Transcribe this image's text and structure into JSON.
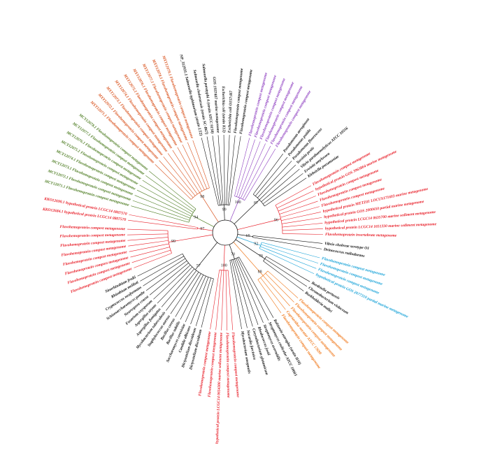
{
  "tree": {
    "clades": [
      {
        "color": "#111111",
        "support": 99,
        "leaves": [
          "NP_312931.1 Salmonella typhimurium (strain LT2)",
          "Salmonella choleraesuis (strain SC-B67)",
          "Salmonella paratyphi A (strain ATCC 9150)",
          "GOS 1937407 marine metagenome",
          "Escherichia coli (strain K12)",
          "Escherichia coli O157:H7",
          "Flavohemoprotein compost metagenome",
          "Flavohemoprotein compost metagenome"
        ]
      },
      {
        "color": "#8e3fc0",
        "support": 100,
        "leaves": [
          "Flavohemoprotein compost metagenome",
          "Flavohemoprotein compost metagenome",
          "Flavohemoprotein compost metagenome",
          "Flavohemoprotein compost metagenome",
          "Flavohemoprotein compost metagenome",
          "Flavohemoprotein compost metagenome"
        ]
      },
      {
        "color": "#111111",
        "support": 87,
        "leaves": [
          "Pseudomonas aeruginosa",
          "Pseudomonas putida",
          "Pseudomonas fluorescens",
          "Yersinia pestis",
          "Vibrio parahaemolyticus ATCC 10556",
          "Erwinia amylovora",
          "Klebsiella pneumoniae"
        ]
      },
      {
        "color": "#e8202a",
        "support": 96,
        "leaves": [
          "Flavohemoprotein compost metagenome",
          "hypothetical protein GOS 3963864 marine metagenome",
          "Flavohemoprotein compost metagenome",
          "Flavohemoprotein compost metagenome",
          "Flavohemoprotein compost metagenome",
          "hypothetical protein METZ01 LOCUS171603 marine metagenome",
          "hypothetical protein GOS 2000650 partial marine metagenome",
          "hypothetical protein LCGC14 0635700 marine sediment metagenome",
          "hypothetical protein LCGC14 1651330 marine sediment metagenome",
          "Flavohemoprotein invertebrate metagenome"
        ]
      },
      {
        "color": "#111111",
        "support": 65,
        "leaves": [
          "Vibrio cholerae serotype O1",
          "Deinococcus radiodurans"
        ]
      },
      {
        "color": "#1aa3d8",
        "support": 92,
        "leaves": [
          "Flavohemoprotein compost metagenome",
          "Flavohemoprotein compost metagenome",
          "Flavohemoprotein compost metagenome",
          "hypothetical protein GOS 2077310 partial marine metagenome"
        ]
      },
      {
        "color": "#111111",
        "support": 78,
        "leaves": [
          "Bordetella pertussis",
          "Chromobacterium violaceum",
          "Burkholderia mallei"
        ]
      },
      {
        "color": "#f07a1e",
        "support": 88,
        "leaves": [
          "Flavohemoprotein compost metagenome",
          "Flavohemoprotein compost metagenome",
          "Flavohemoprotein compost metagenome",
          "Cupriavidus necator ATCC 17699",
          "Flavohemoprotein compost metagenome"
        ]
      },
      {
        "color": "#111111",
        "support": 70,
        "leaves": [
          "Ralstonia eutropha (strain H16)",
          "Streptomyces coelicolor ATCC 10003",
          "Streptomyces avermitilis",
          "Rhodococcus jostii",
          "Corynebacterium glutamicum",
          "Nocardia farcinica",
          "Mycobacterium smegmatis"
        ]
      },
      {
        "color": "#e8202a",
        "support": 100,
        "leaves": [
          "Flavohemoprotein compost metagenome",
          "Flavohemoprotein compost metagenome",
          "hypothetical protein LCGC14 0654300 marine sediment metagenome",
          "Flavohemoprotein compost metagenome",
          "Flavohemoprotein compost metagenome"
        ]
      },
      {
        "color": "#111111",
        "support": 57,
        "leaves": [
          "Dictyostelium discoideum",
          "Dictyostelium discoideum",
          "Candida albicans",
          "Saccharomyces cerevisiae",
          "Bacillus subtilis",
          "Bacillus cereus",
          "Staphylococcus aureus",
          "Mycobacterium tuberculosis",
          "Aspergillus fumigatus",
          "Aspergillus oryzae",
          "Fusarium oxysporum",
          "Neurospora crassa",
          "Schizosaccharomyces pombe",
          "Cryptococcus neoformans",
          "Rhizobium meliloti",
          "Sinorhizobium fredii"
        ]
      },
      {
        "color": "#e8202a",
        "support": 99,
        "leaves": [
          "Flavohemoprotein compost metagenome",
          "Flavohemoprotein compost metagenome",
          "Flavohemoprotein compost metagenome",
          "Flavohemoprotein compost metagenome",
          "Flavohemoprotein compost metagenome",
          "Flavohemoprotein compost metagenome",
          "Flavohemoprotein compost metagenome",
          "Flavohemoprotein compost metagenome"
        ]
      },
      {
        "color": "#e8202a",
        "support": 97,
        "leaves": [
          "KKO12684.1 hypothetical protein LCGC14 0807570",
          "KKO12690.1 hypothetical protein LCGC14 0807570"
        ]
      },
      {
        "color": "#4e7d23",
        "support": 94,
        "leaves": [
          "MCY12071.1 Flavohemoprotein compost metagenome",
          "MCY12072.1 Flavohemoprotein compost metagenome",
          "MCY12073.1 Flavohemoprotein compost metagenome",
          "MCY12074.1 Flavohemoprotein compost metagenome",
          "MCY12075.1 Flavohemoprotein compost metagenome",
          "MCY12076.1 Flavohemoprotein compost metagenome",
          "MCY12077.1 Flavohemoprotein compost metagenome",
          "MCY12078.1 Flavohemoprotein compost metagenome"
        ]
      },
      {
        "color": "#d9531e",
        "support": 98,
        "leaves": [
          "MXY12071.1 Flavohemoprotein compost metagenome",
          "MXY12072.1 Flavohemoprotein compost metagenome",
          "MXY12073.1 Flavohemoprotein compost metagenome",
          "MXY12074.1 Flavohemoprotein compost metagenome",
          "MXY12075.1 Flavohemoprotein compost metagenome",
          "MXY12076.1 Flavohemoprotein compost metagenome",
          "MXY12077.1 Flavohemoprotein compost metagenome",
          "MXY12078.1 Flavohemoprotein compost metagenome",
          "MXY12079.1 Flavohemoprotein compost metagenome"
        ]
      }
    ]
  }
}
